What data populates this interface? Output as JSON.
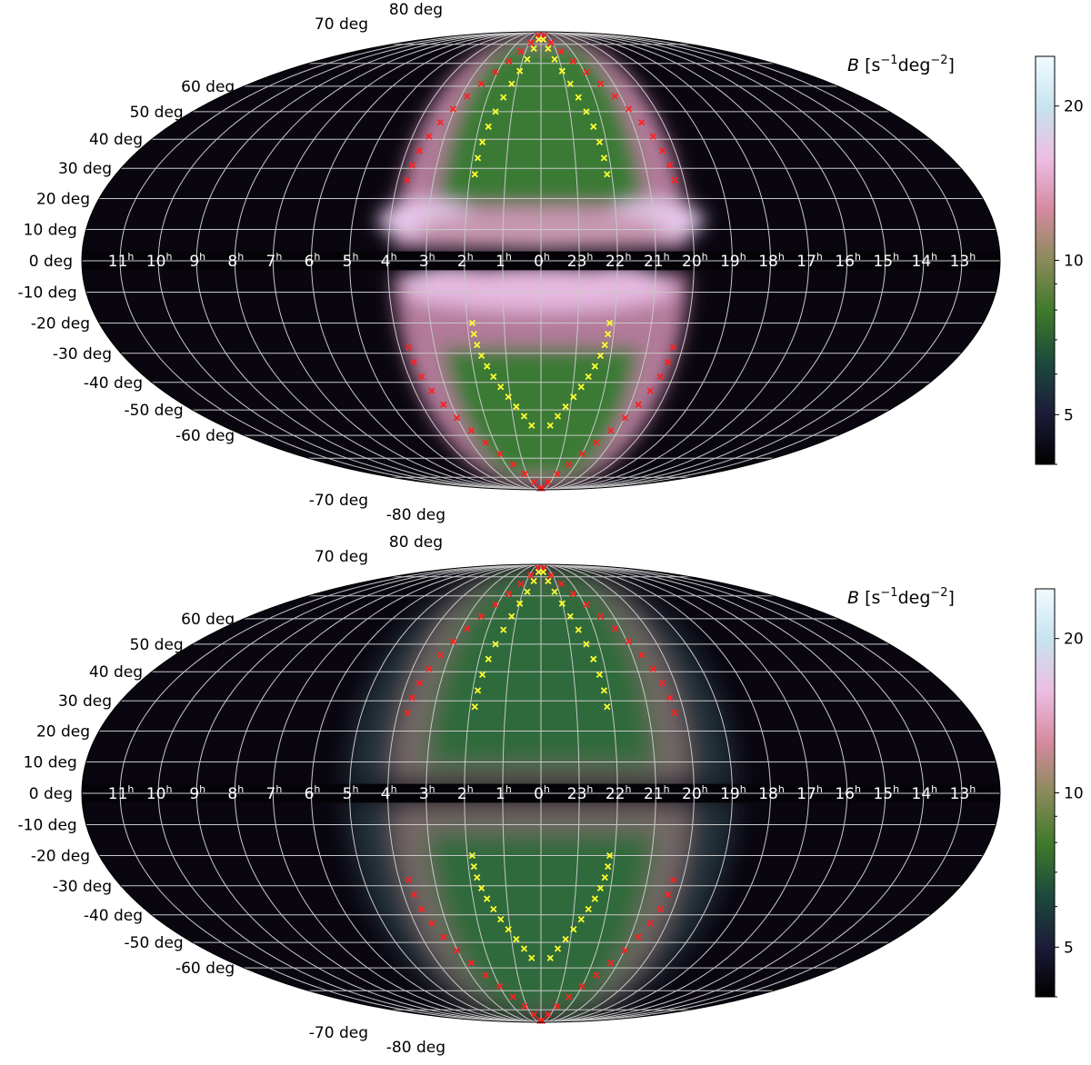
{
  "chart_data": [
    {
      "type": "heatmap",
      "projection": "mollweide",
      "colorbar": {
        "label_var": "B",
        "label_unit_open": "[s",
        "label_unit_exp1": "−1",
        "label_unit_mid": "deg",
        "label_unit_exp2": "−2",
        "label_unit_close": "]",
        "ticks": [
          5,
          10,
          20
        ],
        "range": [
          4,
          25
        ],
        "scale": "log",
        "colormap": [
          "#000000",
          "#1c1c3a",
          "#1d4a3c",
          "#3e7a2a",
          "#8a8a5a",
          "#d58aa0",
          "#ecbde3",
          "#c7e3f0",
          "#f0fbff"
        ]
      },
      "lat_labels": [
        "80 deg",
        "70 deg",
        "60 deg",
        "50 deg",
        "40 deg",
        "30 deg",
        "20 deg",
        "10 deg",
        "0 deg",
        "-10 deg",
        "-20 deg",
        "-30 deg",
        "-40 deg",
        "-50 deg",
        "-60 deg",
        "-70 deg",
        "-80 deg"
      ],
      "lat_values": [
        80,
        70,
        60,
        50,
        40,
        30,
        20,
        10,
        0,
        -10,
        -20,
        -30,
        -40,
        -50,
        -60,
        -70,
        -80
      ],
      "ra_labels": [
        {
          "h": "11",
          "lon": -165
        },
        {
          "h": "10",
          "lon": -150
        },
        {
          "h": "9",
          "lon": -135
        },
        {
          "h": "8",
          "lon": -120
        },
        {
          "h": "7",
          "lon": -105
        },
        {
          "h": "6",
          "lon": -90
        },
        {
          "h": "5",
          "lon": -75
        },
        {
          "h": "4",
          "lon": -60
        },
        {
          "h": "3",
          "lon": -45
        },
        {
          "h": "2",
          "lon": -30
        },
        {
          "h": "1",
          "lon": -15
        },
        {
          "h": "0",
          "lon": 0
        },
        {
          "h": "23",
          "lon": 15
        },
        {
          "h": "22",
          "lon": 30
        },
        {
          "h": "21",
          "lon": 45
        },
        {
          "h": "20",
          "lon": 60
        },
        {
          "h": "19",
          "lon": 75
        },
        {
          "h": "18",
          "lon": 90
        },
        {
          "h": "17",
          "lon": 105
        },
        {
          "h": "16",
          "lon": 120
        },
        {
          "h": "15",
          "lon": 135
        },
        {
          "h": "14",
          "lon": 150
        },
        {
          "h": "13",
          "lon": 165
        }
      ],
      "ra_sup": "h",
      "red_markers_edge_lon": 54,
      "yellow_markers_ring_lon": 28,
      "plane_gap_lat": 3
    },
    {
      "type": "heatmap",
      "projection": "mollweide",
      "colorbar": {
        "label_var": "B",
        "label_unit_open": "[s",
        "label_unit_exp1": "−1",
        "label_unit_mid": "deg",
        "label_unit_exp2": "−2",
        "label_unit_close": "]",
        "ticks": [
          5,
          10,
          20
        ],
        "range": [
          4,
          25
        ],
        "scale": "log",
        "colormap": [
          "#000000",
          "#1c1c3a",
          "#1d4a3c",
          "#3e7a2a",
          "#8a8a5a",
          "#d58aa0",
          "#ecbde3",
          "#c7e3f0",
          "#f0fbff"
        ]
      },
      "lat_labels": [
        "80 deg",
        "70 deg",
        "60 deg",
        "50 deg",
        "40 deg",
        "30 deg",
        "20 deg",
        "10 deg",
        "0 deg",
        "-10 deg",
        "-20 deg",
        "-30 deg",
        "-40 deg",
        "-50 deg",
        "-60 deg",
        "-70 deg",
        "-80 deg"
      ],
      "lat_values": [
        80,
        70,
        60,
        50,
        40,
        30,
        20,
        10,
        0,
        -10,
        -20,
        -30,
        -40,
        -50,
        -60,
        -70,
        -80
      ],
      "ra_labels": [
        {
          "h": "11",
          "lon": -165
        },
        {
          "h": "10",
          "lon": -150
        },
        {
          "h": "9",
          "lon": -135
        },
        {
          "h": "8",
          "lon": -120
        },
        {
          "h": "7",
          "lon": -105
        },
        {
          "h": "6",
          "lon": -90
        },
        {
          "h": "5",
          "lon": -75
        },
        {
          "h": "4",
          "lon": -60
        },
        {
          "h": "3",
          "lon": -45
        },
        {
          "h": "2",
          "lon": -30
        },
        {
          "h": "1",
          "lon": -15
        },
        {
          "h": "0",
          "lon": 0
        },
        {
          "h": "23",
          "lon": 15
        },
        {
          "h": "22",
          "lon": 30
        },
        {
          "h": "21",
          "lon": 45
        },
        {
          "h": "20",
          "lon": 60
        },
        {
          "h": "19",
          "lon": 75
        },
        {
          "h": "18",
          "lon": 90
        },
        {
          "h": "17",
          "lon": 105
        },
        {
          "h": "16",
          "lon": 120
        },
        {
          "h": "15",
          "lon": 135
        },
        {
          "h": "14",
          "lon": 150
        },
        {
          "h": "13",
          "lon": 165
        }
      ],
      "ra_sup": "h",
      "red_markers_edge_lon": 54,
      "yellow_markers_ring_lon": 28,
      "plane_gap_lat": 3
    }
  ]
}
